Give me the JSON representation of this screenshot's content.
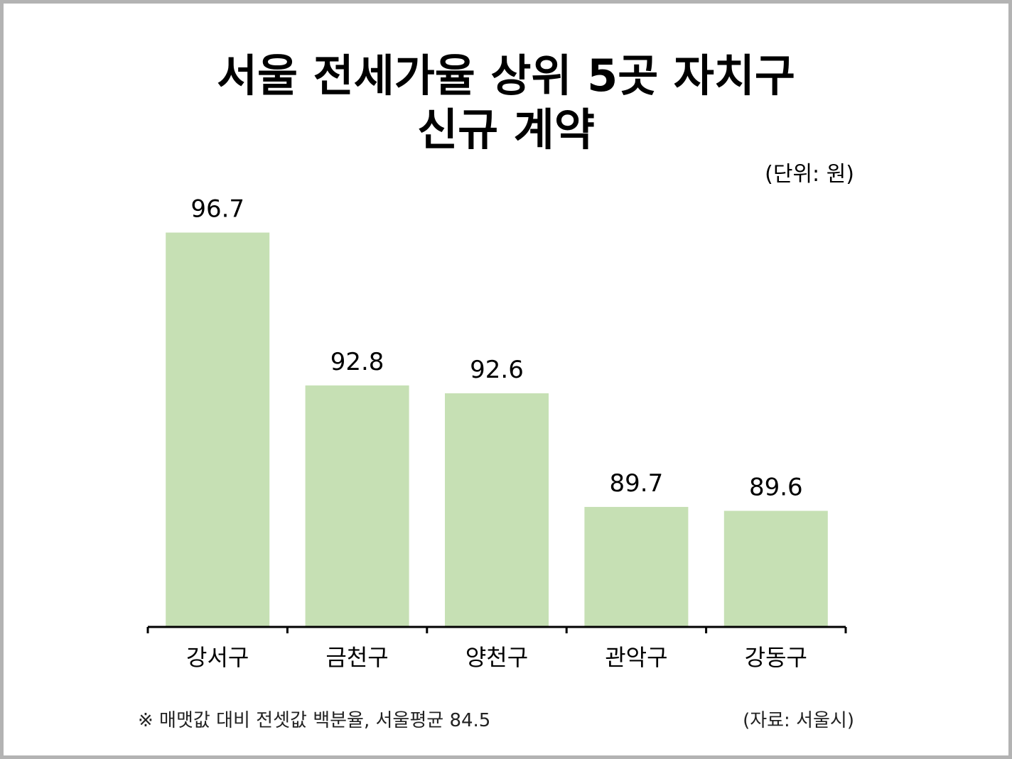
{
  "chart_data": {
    "type": "bar",
    "title_lines": [
      "서울 전세가율 상위 5곳 자치구",
      "신규 계약"
    ],
    "unit_label": "(단위: 원)",
    "categories": [
      "강서구",
      "금천구",
      "양천구",
      "관악구",
      "강동구"
    ],
    "values": [
      96.7,
      92.8,
      92.6,
      89.7,
      89.6
    ],
    "value_labels": [
      "96.7",
      "92.8",
      "92.6",
      "89.7",
      "89.6"
    ],
    "bar_color": "#c6e0b4",
    "footnote": "※ 매맷값 대비 전셋값 백분율, 서울평균 84.5",
    "source": "(자료: 서울시)",
    "grid": false,
    "legend": "none"
  }
}
